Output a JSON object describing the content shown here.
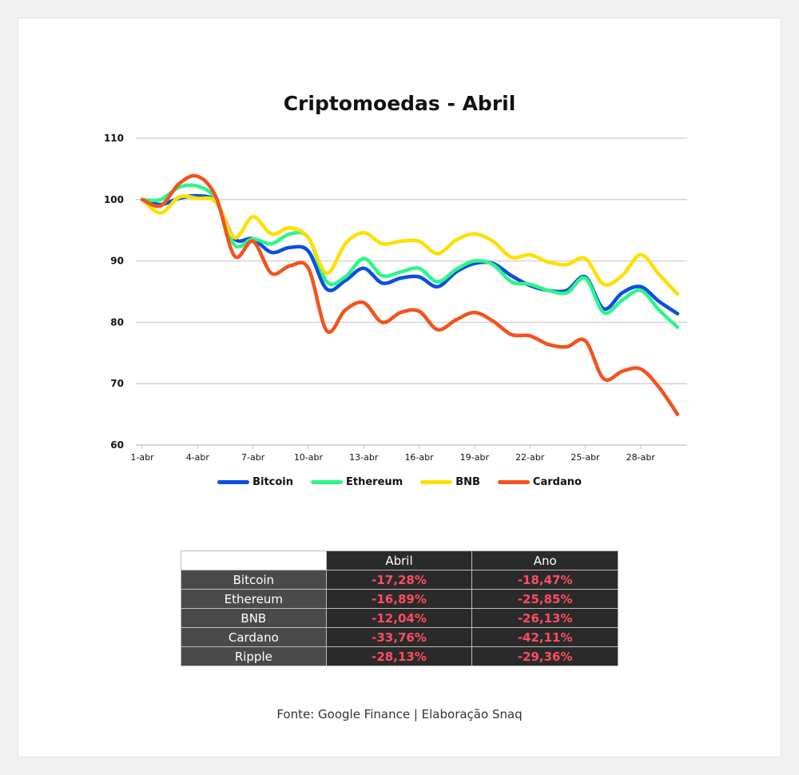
{
  "chart_data": {
    "type": "line",
    "title": "Criptomoedas - Abril",
    "xlabel": "",
    "ylabel": "",
    "ylim": [
      60,
      110
    ],
    "yticks": [
      60,
      70,
      80,
      90,
      100,
      110
    ],
    "x": [
      "1-abr",
      "2-abr",
      "3-abr",
      "4-abr",
      "5-abr",
      "6-abr",
      "7-abr",
      "8-abr",
      "9-abr",
      "10-abr",
      "11-abr",
      "12-abr",
      "13-abr",
      "14-abr",
      "15-abr",
      "16-abr",
      "17-abr",
      "18-abr",
      "19-abr",
      "20-abr",
      "21-abr",
      "22-abr",
      "23-abr",
      "24-abr",
      "25-abr",
      "26-abr",
      "27-abr",
      "28-abr",
      "29-abr",
      "30-abr"
    ],
    "xticks": [
      "1-abr",
      "4-abr",
      "7-abr",
      "10-abr",
      "13-abr",
      "16-abr",
      "19-abr",
      "22-abr",
      "25-abr",
      "28-abr"
    ],
    "grid": true,
    "legend_position": "bottom",
    "series": [
      {
        "name": "Bitcoin",
        "color": "#0a4fe0",
        "values": [
          100,
          99.2,
          100.2,
          100.6,
          99.6,
          93.6,
          93.6,
          91.4,
          92.2,
          91.6,
          85.4,
          86.8,
          88.8,
          86.4,
          87.2,
          87.4,
          85.8,
          88.2,
          89.6,
          89.6,
          87.6,
          86.0,
          85.2,
          85.2,
          87.4,
          82.2,
          84.8,
          85.8,
          83.4,
          81.4
        ]
      },
      {
        "name": "Ethereum",
        "color": "#2ef58a",
        "values": [
          100,
          100,
          102.0,
          102.2,
          100.0,
          92.6,
          93.6,
          92.8,
          94.4,
          93.8,
          86.6,
          87.4,
          90.4,
          87.6,
          88.2,
          88.8,
          86.6,
          88.6,
          90.0,
          89.4,
          86.6,
          86.2,
          85.2,
          84.8,
          87.2,
          81.6,
          83.6,
          85.2,
          82.0,
          79.2
        ]
      },
      {
        "name": "BNB",
        "color": "#ffdf00",
        "values": [
          100,
          97.8,
          100.4,
          100.2,
          99.6,
          93.8,
          97.2,
          94.4,
          95.4,
          93.8,
          88.0,
          92.8,
          94.6,
          92.8,
          93.2,
          93.2,
          91.2,
          93.4,
          94.4,
          93.2,
          90.6,
          91.0,
          89.8,
          89.4,
          90.4,
          86.2,
          87.6,
          91.0,
          87.8,
          84.6
        ]
      },
      {
        "name": "Cardano",
        "color": "#f4521e",
        "values": [
          100,
          99.0,
          102.6,
          103.8,
          100.4,
          90.8,
          93.2,
          88.0,
          89.2,
          88.8,
          78.6,
          82.0,
          83.2,
          80.0,
          81.6,
          81.8,
          78.8,
          80.4,
          81.6,
          80.2,
          78.0,
          77.8,
          76.4,
          76.0,
          77.0,
          70.8,
          72.0,
          72.4,
          69.4,
          65.0
        ]
      }
    ]
  },
  "table": {
    "columns": [
      "Abril",
      "Ano"
    ],
    "rows": [
      {
        "name": "Bitcoin",
        "abril": "-17,28%",
        "ano": "-18,47%"
      },
      {
        "name": "Ethereum",
        "abril": "-16,89%",
        "ano": "-25,85%"
      },
      {
        "name": "BNB",
        "abril": "-12,04%",
        "ano": "-26,13%"
      },
      {
        "name": "Cardano",
        "abril": "-33,76%",
        "ano": "-42,11%"
      },
      {
        "name": "Ripple",
        "abril": "-28,13%",
        "ano": "-29,36%"
      }
    ]
  },
  "source": "Fonte: Google Finance | Elaboração Snaq"
}
